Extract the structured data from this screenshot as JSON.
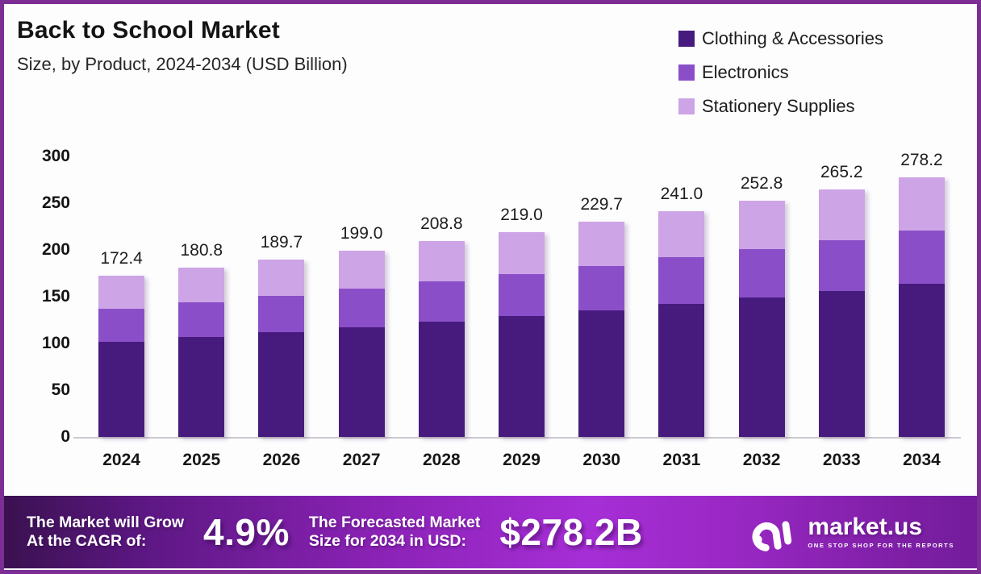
{
  "header": {
    "title": "Back to School Market",
    "subtitle": "Size, by Product, 2024-2034 (USD Billion)"
  },
  "colors": {
    "border": "#7c2e94",
    "series_dark": "#471b7e",
    "series_mid": "#8a4fc8",
    "series_light": "#cda4e6",
    "footer_gradient_start": "#3a1150",
    "footer_gradient_bright": "#a62ed6",
    "footer_gradient_end": "#731c9b"
  },
  "chart_data": {
    "type": "bar",
    "stacked": true,
    "title": "Back to School Market",
    "subtitle": "Size, by Product, 2024-2034 (USD Billion)",
    "unit": "USD Billion",
    "categories": [
      "2024",
      "2025",
      "2026",
      "2027",
      "2028",
      "2029",
      "2030",
      "2031",
      "2032",
      "2033",
      "2034"
    ],
    "series": [
      {
        "name": "Clothing & Accessories",
        "color": "#471b7e",
        "values": [
          101.5,
          106.5,
          111.7,
          117.2,
          123.0,
          129.0,
          135.3,
          141.9,
          148.9,
          156.2,
          163.9
        ]
      },
      {
        "name": "Electronics",
        "color": "#8a4fc8",
        "values": [
          35.5,
          37.2,
          39.1,
          41.0,
          43.0,
          45.1,
          47.3,
          49.6,
          52.1,
          54.6,
          57.3
        ]
      },
      {
        "name": "Stationery Supplies",
        "color": "#cda4e6",
        "values": [
          35.4,
          37.1,
          38.9,
          40.8,
          42.8,
          44.9,
          47.1,
          49.5,
          51.8,
          54.4,
          57.0
        ]
      }
    ],
    "totals": [
      172.4,
      180.8,
      189.7,
      199.0,
      208.8,
      219.0,
      229.7,
      241.0,
      252.8,
      265.2,
      278.2
    ],
    "total_labels": [
      "172.4",
      "180.8",
      "189.7",
      "199.0",
      "208.8",
      "219.0",
      "229.7",
      "241.0",
      "252.8",
      "265.2",
      "278.2"
    ],
    "y_ticks": [
      0,
      50,
      100,
      150,
      200,
      250,
      300
    ],
    "ylim": [
      0,
      300
    ],
    "grid": false,
    "legend_position": "top-right"
  },
  "footer": {
    "cagr_label_line1": "The Market will Grow",
    "cagr_label_line2": "At the CAGR of:",
    "cagr_value": "4.9%",
    "forecast_label_line1": "The Forecasted Market",
    "forecast_label_line2": "Size for 2034 in USD:",
    "forecast_value": "$278.2B",
    "brand": {
      "name": "market.us",
      "tagline": "ONE STOP SHOP FOR THE REPORTS"
    }
  }
}
